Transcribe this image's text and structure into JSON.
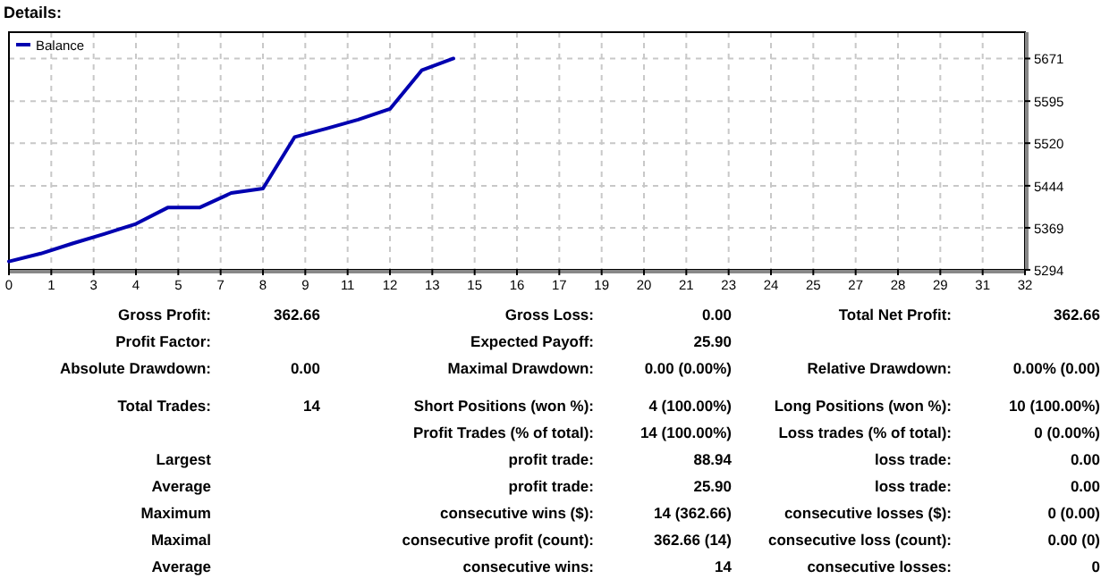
{
  "chart_data": [
    {
      "type": "line",
      "title": "Details:",
      "x": [
        0,
        1,
        2,
        3,
        4,
        5,
        6,
        7,
        8,
        9,
        10,
        11,
        12,
        13,
        14
      ],
      "series": [
        {
          "name": "Balance",
          "color": "#0000b0",
          "values": [
            5309,
            5323,
            5341,
            5358,
            5376,
            5405,
            5405,
            5431,
            5439,
            5531,
            5546,
            5562,
            5581,
            5650,
            5671
          ]
        }
      ],
      "xlim": [
        0,
        32
      ],
      "xticks": [
        0,
        {
          "value": 1.333,
          "label": "1"
        },
        {
          "value": 2.667,
          "label": "3"
        },
        4,
        {
          "value": 5.333,
          "label": "5"
        },
        {
          "value": 6.667,
          "label": "7"
        },
        8,
        {
          "value": 9.333,
          "label": "9"
        },
        {
          "value": 10.667,
          "label": "11"
        },
        12,
        {
          "value": 13.333,
          "label": "13"
        },
        {
          "value": 14.667,
          "label": "15"
        },
        16,
        {
          "value": 17.333,
          "label": "17"
        },
        {
          "value": 18.667,
          "label": "19"
        },
        20,
        {
          "value": 21.333,
          "label": "21"
        },
        {
          "value": 22.667,
          "label": "23"
        },
        24,
        {
          "value": 25.333,
          "label": "25"
        },
        {
          "value": 26.667,
          "label": "27"
        },
        28,
        {
          "value": 29.333,
          "label": "29"
        },
        {
          "value": 30.667,
          "label": "31"
        },
        32
      ],
      "ylim": [
        5294,
        5718
      ],
      "yticks": [
        5294,
        5369,
        5444,
        5520,
        5595,
        5671
      ],
      "grid": true,
      "legend": "top left"
    },
    {
      "type": "other",
      "annotations": [
        "Gross Profit:",
        "362.66",
        "Gross Loss:",
        "0.00",
        "Total Net Profit:",
        "362.66",
        "Profit Factor:",
        null,
        "Expected Payoff:",
        "25.90",
        null,
        null,
        "Absolute Drawdown:",
        "0.00",
        "Maximal Drawdown:",
        "0.00 (0.00%)",
        "Relative Drawdown:",
        "0.00% (0.00)",
        "Total Trades:",
        "14",
        "Short Positions (won %):",
        "4 (100.00%)",
        "Long Positions (won %):",
        "10 (100.00%)",
        null,
        null,
        "Profit Trades (% of total):",
        "14 (100.00%)",
        "Loss trades (% of total):",
        "0 (0.00%)",
        "Largest",
        null,
        "profit trade:",
        "88.94",
        "loss trade:",
        "0.00",
        "Average",
        null,
        "profit trade:",
        "25.90",
        "loss trade:",
        "0.00",
        "Maximum",
        null,
        "consecutive wins ($):",
        "14 (362.66)",
        "consecutive losses ($):",
        "0 (0.00)",
        "Maximal",
        null,
        "consecutive profit (count):",
        "362.66 (14)",
        "consecutive loss (count):",
        "0.00 (0)",
        "Average",
        null,
        "consecutive wins:",
        "14",
        "consecutive losses:",
        "0"
      ]
    }
  ]
}
